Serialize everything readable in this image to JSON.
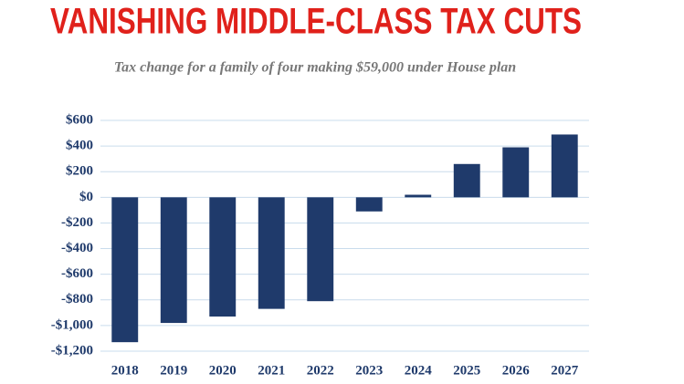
{
  "chart_data": {
    "type": "bar",
    "title": "VANISHING MIDDLE-CLASS TAX CUTS",
    "subtitle": "Tax change for a family of four making $59,000 under House plan",
    "categories": [
      "2018",
      "2019",
      "2020",
      "2021",
      "2022",
      "2023",
      "2024",
      "2025",
      "2026",
      "2027"
    ],
    "values": [
      -1130,
      -980,
      -930,
      -870,
      -810,
      -110,
      20,
      260,
      390,
      490
    ],
    "color": "#1f3a6b",
    "ylim": [
      -1200,
      600
    ],
    "yticks": [
      {
        "value": 600,
        "label": "$600"
      },
      {
        "value": 400,
        "label": "$400"
      },
      {
        "value": 200,
        "label": "$200"
      },
      {
        "value": 0,
        "label": "$0"
      },
      {
        "value": -200,
        "label": "-$200"
      },
      {
        "value": -400,
        "label": "-$400"
      },
      {
        "value": -600,
        "label": "-$600"
      },
      {
        "value": -800,
        "label": "-$800"
      },
      {
        "value": -1000,
        "label": "-$1,000"
      },
      {
        "value": -1200,
        "label": "-$1,200"
      }
    ],
    "grid": true
  }
}
